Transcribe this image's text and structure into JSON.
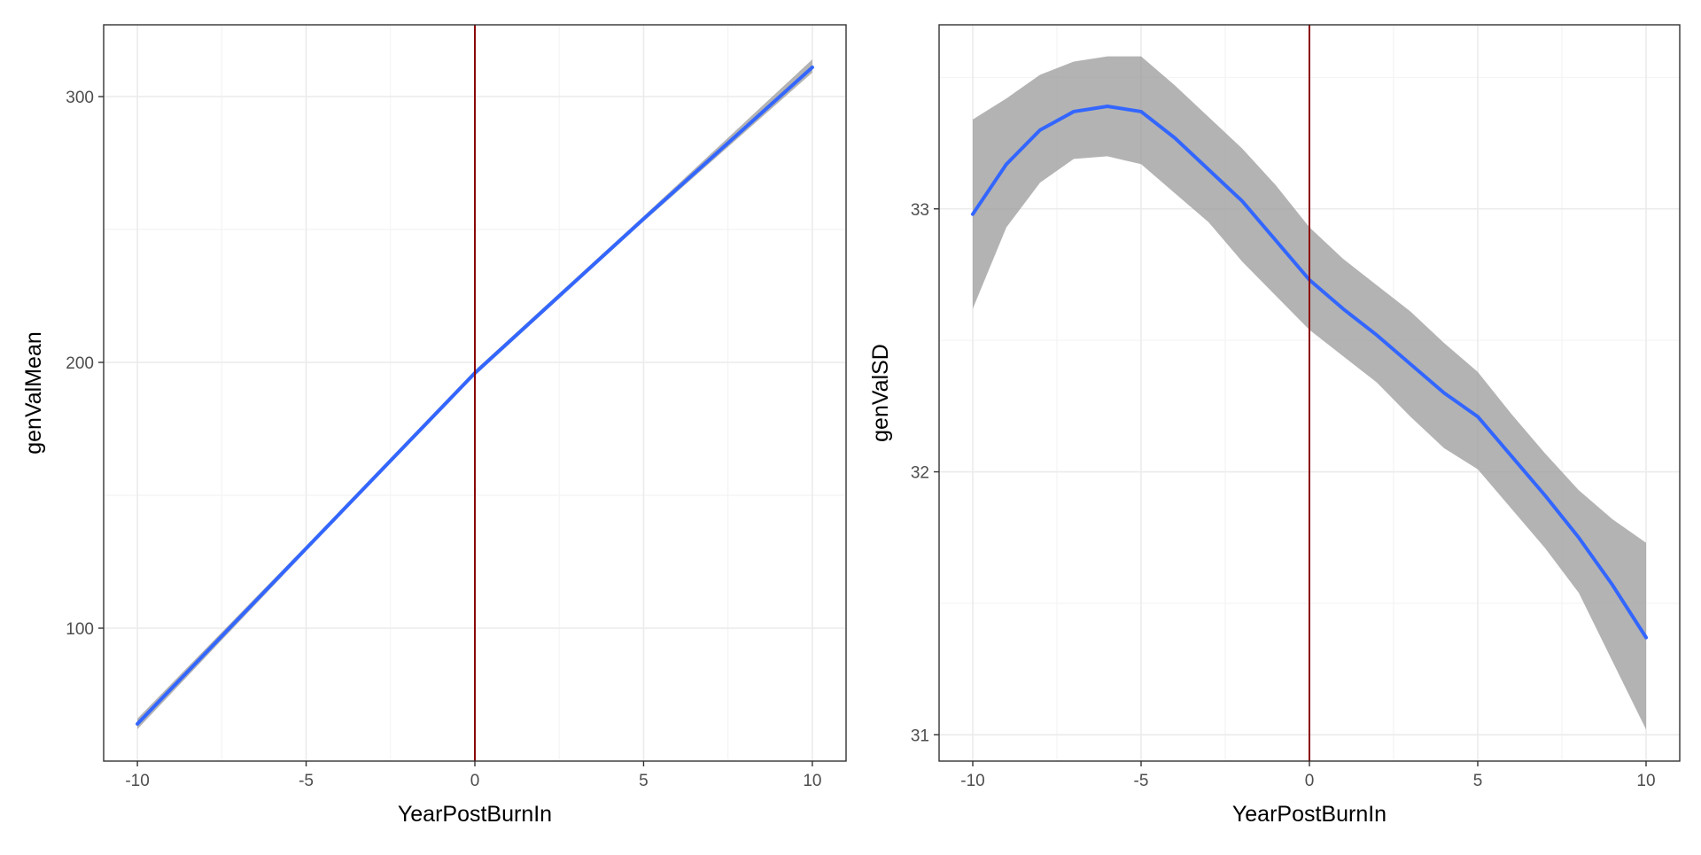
{
  "chart_data": [
    {
      "type": "line",
      "xlabel": "YearPostBurnIn",
      "ylabel": "genValMean",
      "xlim": [
        -11,
        11
      ],
      "ylim": [
        50,
        327
      ],
      "x_ticks": [
        -10,
        -5,
        0,
        5,
        10
      ],
      "x_tick_labels": [
        "-10",
        "-5",
        "0",
        "5",
        "10"
      ],
      "y_ticks": [
        100,
        200,
        300
      ],
      "y_tick_labels": [
        "100",
        "200",
        "300"
      ],
      "grid": true,
      "vline": {
        "x": 0,
        "color": "#8b0000"
      },
      "series": [
        {
          "x": [
            -10,
            -5,
            0,
            5,
            10
          ],
          "y": [
            64,
            130,
            196,
            254,
            311
          ],
          "ymin": [
            62,
            129,
            195,
            253,
            309
          ],
          "ymax": [
            66,
            131,
            197,
            255,
            314
          ],
          "color": "#3366ff",
          "band_color": "#999999"
        }
      ]
    },
    {
      "type": "line",
      "xlabel": "YearPostBurnIn",
      "ylabel": "genValSD",
      "xlim": [
        -11,
        11
      ],
      "ylim": [
        30.9,
        33.7
      ],
      "x_ticks": [
        -10,
        -5,
        0,
        5,
        10
      ],
      "x_tick_labels": [
        "-10",
        "-5",
        "0",
        "5",
        "10"
      ],
      "y_ticks": [
        31,
        32,
        33
      ],
      "y_tick_labels": [
        "31",
        "32",
        "33"
      ],
      "grid": true,
      "vline": {
        "x": 0,
        "color": "#8b0000"
      },
      "series": [
        {
          "x": [
            -10,
            -9,
            -8,
            -7,
            -6,
            -5,
            -4,
            -3,
            -2,
            -1,
            0,
            1,
            2,
            3,
            4,
            5,
            6,
            7,
            8,
            9,
            10
          ],
          "y": [
            32.98,
            33.17,
            33.3,
            33.37,
            33.39,
            33.37,
            33.27,
            33.15,
            33.03,
            32.88,
            32.73,
            32.62,
            32.52,
            32.41,
            32.3,
            32.21,
            32.06,
            31.91,
            31.75,
            31.57,
            31.37
          ],
          "ymin": [
            32.62,
            32.93,
            33.1,
            33.19,
            33.2,
            33.17,
            33.06,
            32.95,
            32.8,
            32.67,
            32.54,
            32.44,
            32.34,
            32.21,
            32.09,
            32.01,
            31.86,
            31.71,
            31.54,
            31.28,
            31.02
          ],
          "ymax": [
            33.34,
            33.42,
            33.51,
            33.56,
            33.58,
            33.58,
            33.47,
            33.35,
            33.23,
            33.09,
            32.93,
            32.81,
            32.71,
            32.61,
            32.49,
            32.38,
            32.22,
            32.07,
            31.93,
            31.82,
            31.73
          ],
          "color": "#3366ff",
          "band_color": "#999999"
        }
      ]
    }
  ]
}
